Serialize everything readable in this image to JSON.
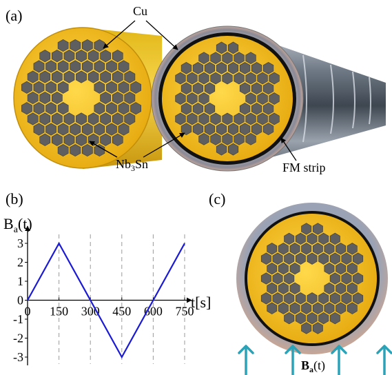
{
  "panel_a": {
    "label": "(a)",
    "cu_label": "Cu",
    "nb3sn_label": "Nb",
    "nb3sn_sub": "3",
    "nb3sn_suffix": "Sn",
    "fm_label": "FM strip"
  },
  "panel_b": {
    "label": "(b)",
    "ylabel_main": "B",
    "ylabel_sub": "a",
    "ylabel_tail": "(t)",
    "xlabel": "t[s]"
  },
  "panel_c": {
    "label": "(c)",
    "field_bold": "B",
    "field_sub": "a",
    "field_tail": "(t)"
  },
  "colors": {
    "copper": "#f2c020",
    "filament": "#5f5f5f",
    "line": "#1a1ad6",
    "arrow": "#2aa2b8",
    "sheath": "#8e9099"
  },
  "chart_data": {
    "type": "line",
    "x": [
      0,
      150,
      450,
      750
    ],
    "values": [
      0,
      3,
      -3,
      3
    ],
    "xticks": [
      0,
      150,
      300,
      450,
      600,
      750
    ],
    "xtick_labels": [
      "0",
      "150",
      "300",
      "450",
      "600",
      "750"
    ],
    "yticks": [
      3,
      2,
      1,
      0,
      -1,
      -2,
      -3
    ],
    "ytick_labels": [
      "3",
      "2",
      "1",
      "0",
      "-1",
      "-2",
      "-3"
    ],
    "xlim": [
      0,
      750
    ],
    "ylim": [
      -3,
      3
    ],
    "dashed_verticals": [
      150,
      300,
      450,
      600,
      750
    ]
  }
}
